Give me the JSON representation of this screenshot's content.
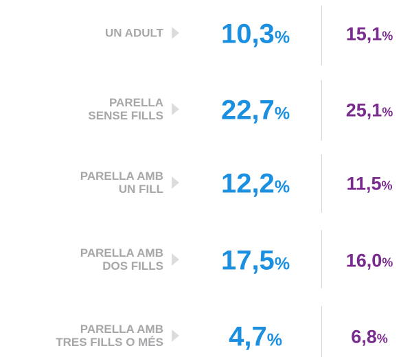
{
  "table": {
    "rows": [
      {
        "label": [
          "UN ADULT"
        ],
        "values": [
          "10,3%",
          "15,1%"
        ]
      },
      {
        "label": [
          "PARELLA",
          "SENSE FILLS"
        ],
        "values": [
          "22,7%",
          "25,1%"
        ]
      },
      {
        "label": [
          "PARELLA AMB",
          "UN FILL"
        ],
        "values": [
          "12,2%",
          "11,5%"
        ]
      },
      {
        "label": [
          "PARELLA AMB",
          "DOS FILLS"
        ],
        "values": [
          "17,5%",
          "16,0%"
        ]
      },
      {
        "label": [
          "PARELLA AMB",
          "TRES FILLS O MÉS"
        ],
        "values": [
          "4,7%",
          "6,8%"
        ]
      }
    ]
  }
}
